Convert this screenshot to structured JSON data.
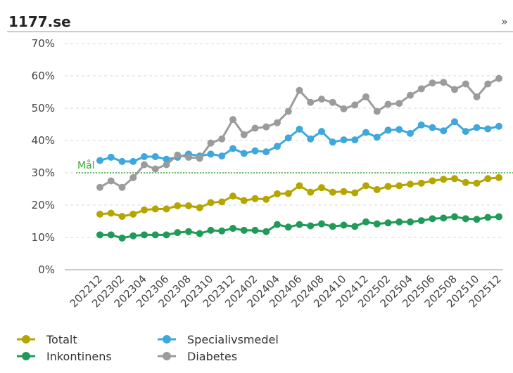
{
  "chart_data": {
    "type": "line",
    "title": "1177.se",
    "more_link": "»",
    "categories": [
      "202212",
      null,
      "202302",
      null,
      "202304",
      null,
      "202306",
      null,
      "202308",
      null,
      "202310",
      null,
      "202312",
      null,
      "202402",
      null,
      "202404",
      null,
      "202406",
      null,
      "202408",
      null,
      "202410",
      null,
      "202412",
      null,
      "202502",
      null,
      "202504",
      null,
      "202506",
      null,
      "202508",
      null,
      "202510",
      null,
      "202512"
    ],
    "series": [
      {
        "name": "Totalt",
        "color": "#b5a500",
        "values": [
          17.2,
          17.5,
          16.5,
          17.2,
          18.5,
          18.8,
          18.8,
          19.8,
          19.8,
          19.2,
          20.8,
          21.0,
          22.8,
          21.4,
          22.0,
          21.8,
          23.5,
          23.6,
          26.0,
          24.0,
          25.4,
          24.0,
          24.2,
          23.8,
          26.0,
          24.8,
          25.8,
          26.0,
          26.5,
          26.8,
          27.5,
          28.0,
          28.2,
          27.0,
          26.8,
          28.2,
          28.5
        ]
      },
      {
        "name": "Specialivsmedel",
        "color": "#3ea8dc",
        "values": [
          33.8,
          34.8,
          33.5,
          33.5,
          35.0,
          35.0,
          34.2,
          34.8,
          35.8,
          35.2,
          35.8,
          35.2,
          37.5,
          36.0,
          36.8,
          36.5,
          38.2,
          40.8,
          43.5,
          40.5,
          42.8,
          39.5,
          40.2,
          40.2,
          42.5,
          41.0,
          43.2,
          43.4,
          42.2,
          44.8,
          44.0,
          43.0,
          45.8,
          42.8,
          44.0,
          43.6,
          44.4
        ]
      },
      {
        "name": "Inkontinens",
        "color": "#1f9a58",
        "values": [
          10.8,
          10.8,
          9.8,
          10.5,
          10.8,
          10.8,
          10.8,
          11.5,
          11.8,
          11.2,
          12.2,
          12.0,
          12.8,
          12.2,
          12.2,
          11.8,
          14.0,
          13.2,
          14.0,
          13.6,
          14.2,
          13.4,
          13.8,
          13.4,
          14.8,
          14.2,
          14.5,
          14.8,
          14.8,
          15.2,
          15.8,
          16.0,
          16.4,
          15.8,
          15.6,
          16.2,
          16.4
        ]
      },
      {
        "name": "Diabetes",
        "color": "#9b9b9b",
        "values": [
          25.5,
          27.5,
          25.5,
          28.5,
          32.5,
          31.2,
          32.5,
          35.5,
          34.8,
          34.5,
          39.2,
          40.5,
          46.5,
          41.8,
          43.8,
          44.2,
          45.5,
          49.0,
          55.5,
          51.8,
          52.8,
          51.8,
          49.8,
          51.0,
          53.5,
          49.0,
          51.2,
          51.5,
          54.0,
          56.0,
          57.8,
          58.0,
          55.8,
          57.5,
          53.5,
          57.5,
          59.2
        ]
      }
    ],
    "goal": {
      "value": 30,
      "label": "Mål",
      "color": "#3aaa35"
    },
    "ylim": [
      0,
      70
    ],
    "yticks": [
      {
        "value": 0,
        "label": "0%"
      },
      {
        "value": 10,
        "label": "10%"
      },
      {
        "value": 20,
        "label": "20%"
      },
      {
        "value": 30,
        "label": "30%"
      },
      {
        "value": 40,
        "label": "40%"
      },
      {
        "value": 50,
        "label": "50%"
      },
      {
        "value": 60,
        "label": "60%"
      },
      {
        "value": 70,
        "label": "70%"
      }
    ],
    "grid": true
  }
}
